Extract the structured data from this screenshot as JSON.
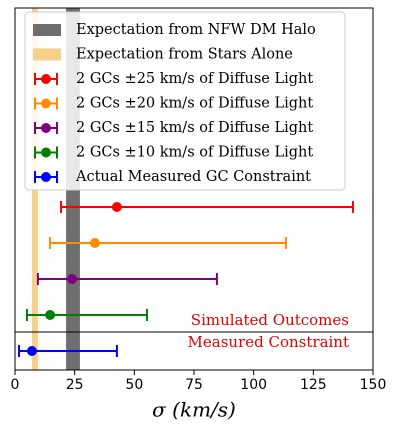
{
  "chart_data": {
    "type": "errorbar",
    "xlabel": "σ (km/s)",
    "xlim": [
      0,
      150
    ],
    "xticks": [
      0,
      25,
      50,
      75,
      100,
      125,
      150
    ],
    "bands": [
      {
        "name": "Expectation from NFW DM Halo",
        "color": "#6e6e6e",
        "range": [
          21.4,
          27.2
        ]
      },
      {
        "name": "Expectation from Stars Alone",
        "color": "#f8d08a",
        "range": [
          7.1,
          9.6
        ]
      }
    ],
    "series": [
      {
        "name": "2 GCs ±25 km/s of Diffuse Light",
        "color": "#ff0000",
        "value": 42.7,
        "lower": 19.3,
        "upper": 141.6
      },
      {
        "name": "2 GCs ±20 km/s of Diffuse Light",
        "color": "#ff8c00",
        "value": 33.5,
        "lower": 14.7,
        "upper": 113.5
      },
      {
        "name": "2 GCs ±15 km/s of Diffuse Light",
        "color": "#800080",
        "value": 23.9,
        "lower": 9.6,
        "upper": 84.6
      },
      {
        "name": "2 GCs ±10 km/s of Diffuse Light",
        "color": "#008000",
        "value": 14.7,
        "lower": 5.0,
        "upper": 55.3
      },
      {
        "name": "Actual Measured GC Constraint",
        "color": "#0000ff",
        "value": 7.1,
        "lower": 1.7,
        "upper": 42.7
      }
    ],
    "annotations": [
      "Simulated Outcomes",
      "Measured Constraint"
    ]
  }
}
